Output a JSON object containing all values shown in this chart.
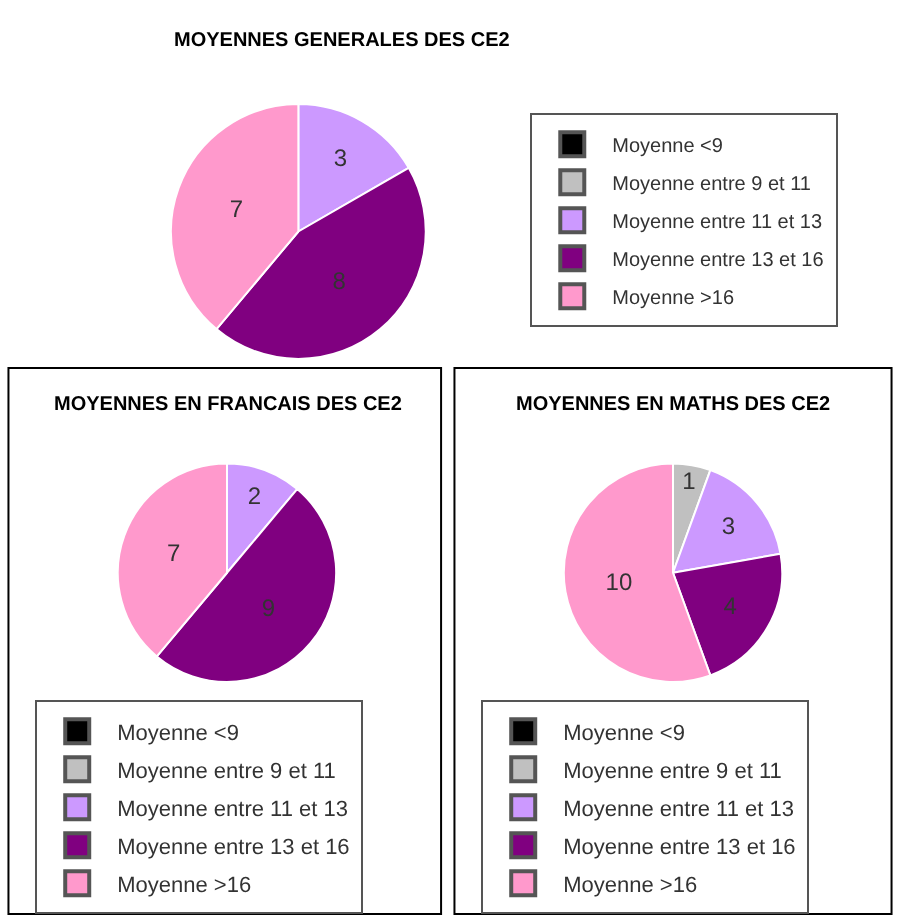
{
  "chart_data": [
    {
      "type": "pie",
      "title": "MOYENNES GENERALES DES CE2",
      "categories": [
        "Moyenne <9",
        "Moyenne entre 9 et 11",
        "Moyenne entre 11 et 13",
        "Moyenne entre 13 et 16",
        "Moyenne >16"
      ],
      "values": [
        0,
        0,
        3,
        8,
        7
      ],
      "colors": [
        "#000000",
        "#c0c0c0",
        "#cc99ff",
        "#800080",
        "#ff99cc"
      ],
      "data_labels": true,
      "legend": "right"
    },
    {
      "type": "pie",
      "title": "MOYENNES EN FRANCAIS DES CE2",
      "categories": [
        "Moyenne <9",
        "Moyenne entre 9 et 11",
        "Moyenne entre 11 et 13",
        "Moyenne entre 13 et 16",
        "Moyenne >16"
      ],
      "values": [
        0,
        0,
        2,
        9,
        7
      ],
      "colors": [
        "#000000",
        "#c0c0c0",
        "#cc99ff",
        "#800080",
        "#ff99cc"
      ],
      "data_labels": true,
      "legend": "bottom"
    },
    {
      "type": "pie",
      "title": "MOYENNES EN MATHS DES CE2",
      "categories": [
        "Moyenne <9",
        "Moyenne entre 9 et 11",
        "Moyenne entre 11 et 13",
        "Moyenne entre 13 et 16",
        "Moyenne >16"
      ],
      "values": [
        0,
        1,
        3,
        4,
        10
      ],
      "colors": [
        "#000000",
        "#c0c0c0",
        "#cc99ff",
        "#800080",
        "#ff99cc"
      ],
      "data_labels": true,
      "legend": "bottom"
    }
  ]
}
